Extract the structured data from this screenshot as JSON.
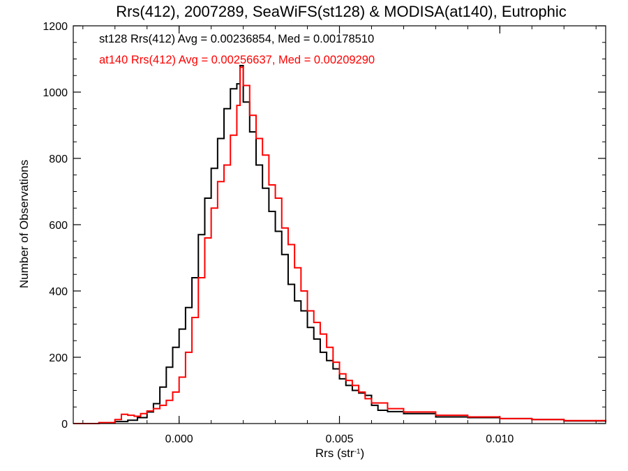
{
  "chart_data": {
    "type": "histogram-step",
    "title": "Rrs(412), 2007289, SeaWiFS(st128) & MODISA(at140), Eutrophic",
    "xlabel": "Rrs (str",
    "xlabel_sup": "-1",
    "xlabel_close": ")",
    "ylabel": "Number of Observations",
    "xlim": [
      -0.0033,
      0.0133
    ],
    "ylim": [
      0,
      1200
    ],
    "x_ticks": [
      0.0,
      0.005,
      0.01
    ],
    "x_tick_labels": [
      "0.000",
      "0.005",
      "0.010"
    ],
    "x_minor_step": 0.001,
    "y_ticks": [
      0,
      200,
      400,
      600,
      800,
      1000,
      1200
    ],
    "y_tick_labels": [
      "0",
      "200",
      "400",
      "600",
      "800",
      "1000",
      "1200"
    ],
    "y_minor_step": 50,
    "grid": false,
    "annotations": [
      {
        "text": "st128 Rrs(412) Avg = 0.00236854, Med = 0.00178510",
        "color": "#000000"
      },
      {
        "text": "at140 Rrs(412) Avg = 0.00256637, Med = 0.00209290",
        "color": "#ff0000"
      }
    ],
    "series": [
      {
        "color": "#000000",
        "points": [
          [
            -0.0033,
            0
          ],
          [
            -0.0025,
            2
          ],
          [
            -0.002,
            6
          ],
          [
            -0.0016,
            10
          ],
          [
            -0.0013,
            18
          ],
          [
            -0.001,
            35
          ],
          [
            -0.0008,
            60
          ],
          [
            -0.0006,
            110
          ],
          [
            -0.0004,
            170
          ],
          [
            -0.0002,
            230
          ],
          [
            0.0,
            285
          ],
          [
            0.0002,
            350
          ],
          [
            0.0004,
            440
          ],
          [
            0.0006,
            570
          ],
          [
            0.0008,
            680
          ],
          [
            0.001,
            770
          ],
          [
            0.0012,
            860
          ],
          [
            0.0014,
            950
          ],
          [
            0.0016,
            1010
          ],
          [
            0.0018,
            1025
          ],
          [
            0.0019,
            1080
          ],
          [
            0.002,
            970
          ],
          [
            0.0022,
            880
          ],
          [
            0.0024,
            780
          ],
          [
            0.0026,
            710
          ],
          [
            0.0028,
            640
          ],
          [
            0.003,
            580
          ],
          [
            0.0032,
            510
          ],
          [
            0.0034,
            420
          ],
          [
            0.0036,
            370
          ],
          [
            0.0038,
            340
          ],
          [
            0.004,
            290
          ],
          [
            0.0042,
            255
          ],
          [
            0.0044,
            215
          ],
          [
            0.0046,
            190
          ],
          [
            0.0048,
            165
          ],
          [
            0.005,
            135
          ],
          [
            0.0052,
            115
          ],
          [
            0.0054,
            100
          ],
          [
            0.0056,
            92
          ],
          [
            0.0058,
            85
          ],
          [
            0.006,
            55
          ],
          [
            0.0062,
            40
          ],
          [
            0.0065,
            36
          ],
          [
            0.007,
            30
          ],
          [
            0.008,
            20
          ],
          [
            0.009,
            18
          ],
          [
            0.01,
            15
          ],
          [
            0.011,
            12
          ],
          [
            0.012,
            8
          ],
          [
            0.0133,
            5
          ]
        ]
      },
      {
        "color": "#ff0000",
        "points": [
          [
            -0.0033,
            0
          ],
          [
            -0.0025,
            3
          ],
          [
            -0.002,
            12
          ],
          [
            -0.0018,
            28
          ],
          [
            -0.0016,
            25
          ],
          [
            -0.0014,
            22
          ],
          [
            -0.0012,
            30
          ],
          [
            -0.001,
            38
          ],
          [
            -0.0008,
            45
          ],
          [
            -0.0006,
            55
          ],
          [
            -0.0004,
            70
          ],
          [
            -0.0002,
            95
          ],
          [
            0.0,
            140
          ],
          [
            0.0002,
            215
          ],
          [
            0.0004,
            320
          ],
          [
            0.0006,
            440
          ],
          [
            0.0008,
            560
          ],
          [
            0.001,
            650
          ],
          [
            0.0012,
            730
          ],
          [
            0.0014,
            780
          ],
          [
            0.0016,
            870
          ],
          [
            0.0018,
            960
          ],
          [
            0.0019,
            1075
          ],
          [
            0.002,
            1020
          ],
          [
            0.0022,
            930
          ],
          [
            0.0024,
            860
          ],
          [
            0.0026,
            810
          ],
          [
            0.0028,
            720
          ],
          [
            0.003,
            680
          ],
          [
            0.0032,
            590
          ],
          [
            0.0034,
            540
          ],
          [
            0.0036,
            470
          ],
          [
            0.0038,
            400
          ],
          [
            0.004,
            340
          ],
          [
            0.0042,
            305
          ],
          [
            0.0044,
            270
          ],
          [
            0.0046,
            230
          ],
          [
            0.0048,
            185
          ],
          [
            0.005,
            150
          ],
          [
            0.0052,
            130
          ],
          [
            0.0054,
            115
          ],
          [
            0.0056,
            95
          ],
          [
            0.0058,
            75
          ],
          [
            0.006,
            62
          ],
          [
            0.0065,
            45
          ],
          [
            0.007,
            35
          ],
          [
            0.008,
            25
          ],
          [
            0.009,
            20
          ],
          [
            0.01,
            15
          ],
          [
            0.011,
            12
          ],
          [
            0.012,
            9
          ],
          [
            0.0133,
            6
          ]
        ]
      }
    ]
  }
}
